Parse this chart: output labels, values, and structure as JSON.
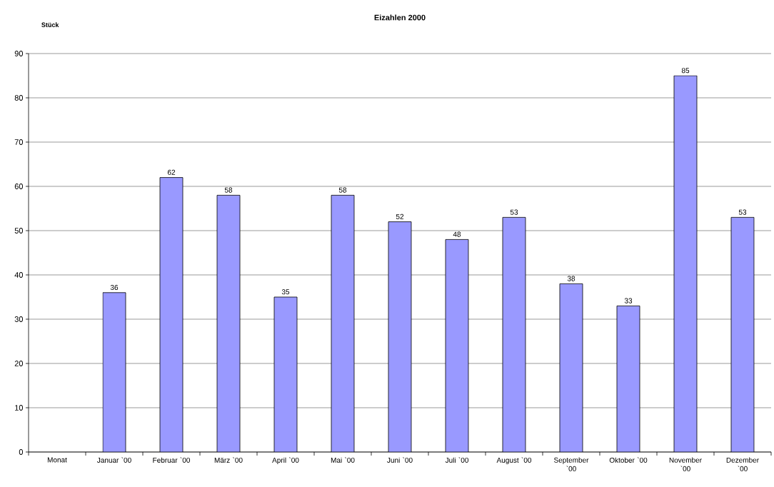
{
  "chart_data": {
    "type": "bar",
    "title": "Eizahlen 2000",
    "ylabel": "Stück",
    "categories": [
      "Monat",
      "Januar `00",
      "Februar `00",
      "März `00",
      "April `00",
      "Mai `00",
      "Juni `00",
      "Juli `00",
      "August `00",
      "September `00",
      "Oktober `00",
      "November `00",
      "Dezember `00"
    ],
    "values": [
      null,
      36,
      62,
      58,
      35,
      58,
      52,
      48,
      53,
      38,
      33,
      85,
      53
    ],
    "color": "#9999ff",
    "ylim": [
      0,
      90
    ],
    "yticks": [
      0,
      10,
      20,
      30,
      40,
      50,
      60,
      70,
      80,
      90
    ],
    "grid": "y",
    "data_labels": true
  }
}
